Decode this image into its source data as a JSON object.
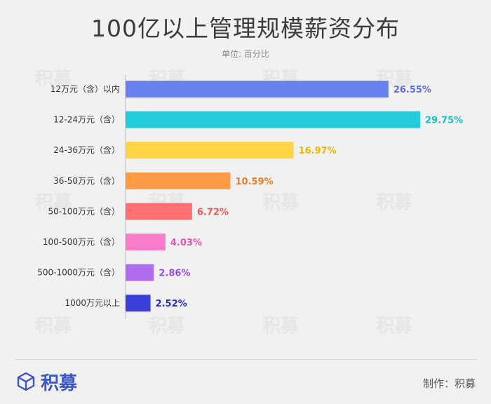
{
  "title": "100亿以上管理规模薪资分布",
  "subtitle": "单位: 百分比",
  "logo_text": "积募",
  "watermark_text": "积募",
  "credit": "制作：积募",
  "chart_data": {
    "type": "bar",
    "orientation": "horizontal",
    "categories": [
      "12万元（含）以内",
      "12-24万元（含）",
      "24-36万元（含）",
      "36-50万元（含）",
      "50-100万元（含）",
      "100-500万元（含）",
      "500-1000万元（含）",
      "1000万元以上"
    ],
    "values": [
      26.55,
      29.75,
      16.97,
      10.59,
      6.72,
      4.03,
      2.86,
      2.52
    ],
    "labels": [
      "26.55%",
      "29.75%",
      "16.97%",
      "10.59%",
      "6.72%",
      "4.03%",
      "2.86%",
      "2.52%"
    ],
    "colors": [
      "#6a82ee",
      "#22cdd9",
      "#ffd447",
      "#ff9b45",
      "#ff7170",
      "#f97cc8",
      "#b06cf0",
      "#3b40d8"
    ],
    "label_colors": [
      "#5a70e0",
      "#1cbcc8",
      "#e8b800",
      "#f07d20",
      "#ef5555",
      "#e94fb0",
      "#9a4ee8",
      "#2b2fc0"
    ],
    "xlim": [
      0,
      29.75
    ],
    "grid": false,
    "legend": "none"
  }
}
